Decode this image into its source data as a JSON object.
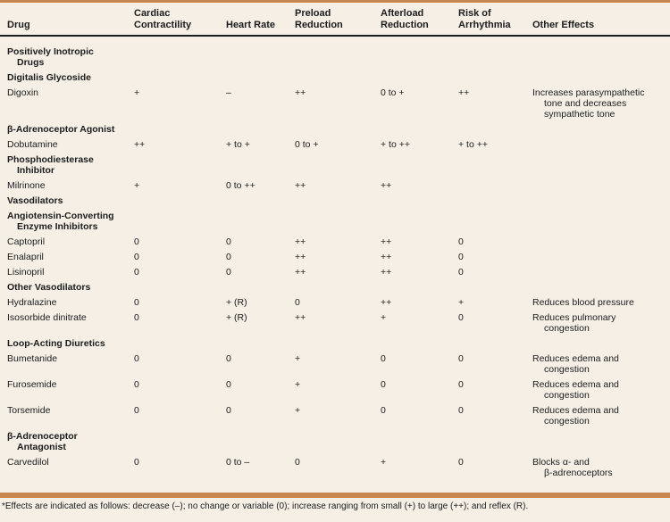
{
  "colors": {
    "accent_bar": "#c6864e",
    "background": "#f5efe6",
    "text": "#1c1c1c",
    "header_rule": "#1c1c1c"
  },
  "table": {
    "columns": [
      [
        "Drug"
      ],
      [
        "Cardiac",
        "Contractility"
      ],
      [
        "Heart Rate"
      ],
      [
        "Preload",
        "Reduction"
      ],
      [
        "Afterload",
        "Reduction"
      ],
      [
        "Risk of",
        "Arrhythmia"
      ],
      [
        "Other Effects"
      ]
    ],
    "rows": [
      {
        "type": "section",
        "lines": [
          "Positively Inotropic",
          "Drugs"
        ]
      },
      {
        "type": "section",
        "lines": [
          "Digitalis Glycoside"
        ]
      },
      {
        "type": "drug",
        "drug": "Digoxin",
        "values": [
          "+",
          "–",
          "++",
          "0 to +",
          "++"
        ],
        "other": [
          "Increases parasympathetic",
          "tone and decreases",
          "sympathetic tone"
        ]
      },
      {
        "type": "section",
        "lines": [
          "β-Adrenoceptor Agonist"
        ]
      },
      {
        "type": "drug",
        "drug": "Dobutamine",
        "values": [
          "++",
          "+ to +",
          "0 to +",
          "+ to ++",
          "+ to ++"
        ],
        "other": []
      },
      {
        "type": "section",
        "lines": [
          "Phosphodiesterase",
          "Inhibitor"
        ]
      },
      {
        "type": "drug",
        "drug": "Milrinone",
        "values": [
          "+",
          "0 to ++",
          "++",
          "++",
          ""
        ],
        "other": []
      },
      {
        "type": "section",
        "lines": [
          "Vasodilators"
        ]
      },
      {
        "type": "section",
        "lines": [
          "Angiotensin-Converting",
          "Enzyme Inhibitors"
        ]
      },
      {
        "type": "drug",
        "drug": "Captopril",
        "values": [
          "0",
          "0",
          "++",
          "++",
          "0"
        ],
        "other": []
      },
      {
        "type": "drug",
        "drug": "Enalapril",
        "values": [
          "0",
          "0",
          "++",
          "++",
          "0"
        ],
        "other": []
      },
      {
        "type": "drug",
        "drug": "Lisinopril",
        "values": [
          "0",
          "0",
          "++",
          "++",
          "0"
        ],
        "other": []
      },
      {
        "type": "section",
        "lines": [
          "Other Vasodilators"
        ]
      },
      {
        "type": "drug",
        "drug": "Hydralazine",
        "values": [
          "0",
          "+ (R)",
          "0",
          "++",
          "+"
        ],
        "other": [
          "Reduces blood pressure"
        ]
      },
      {
        "type": "drug",
        "drug": "Isosorbide dinitrate",
        "values": [
          "0",
          "+ (R)",
          "++",
          "+",
          "0"
        ],
        "other": [
          "Reduces pulmonary",
          "congestion"
        ]
      },
      {
        "type": "section",
        "lines": [
          "Loop-Acting Diuretics"
        ]
      },
      {
        "type": "drug",
        "drug": "Bumetanide",
        "values": [
          "0",
          "0",
          "+",
          "0",
          "0"
        ],
        "other": [
          "Reduces edema and",
          "congestion"
        ]
      },
      {
        "type": "drug",
        "drug": "Furosemide",
        "values": [
          "0",
          "0",
          "+",
          "0",
          "0"
        ],
        "other": [
          "Reduces edema and",
          "congestion"
        ]
      },
      {
        "type": "drug",
        "drug": "Torsemide",
        "values": [
          "0",
          "0",
          "+",
          "0",
          "0"
        ],
        "other": [
          "Reduces edema and",
          "congestion"
        ]
      },
      {
        "type": "section",
        "lines": [
          "β-Adrenoceptor",
          "Antagonist"
        ]
      },
      {
        "type": "drug",
        "drug": "Carvedilol",
        "values": [
          "0",
          "0 to –",
          "0",
          "+",
          "0"
        ],
        "other": [
          "Blocks α- and",
          "β-adrenoceptors"
        ]
      }
    ]
  },
  "footnote": "*Effects are indicated as follows: decrease (–); no change or variable (0); increase ranging from small (+) to large (++); and reflex (R)."
}
